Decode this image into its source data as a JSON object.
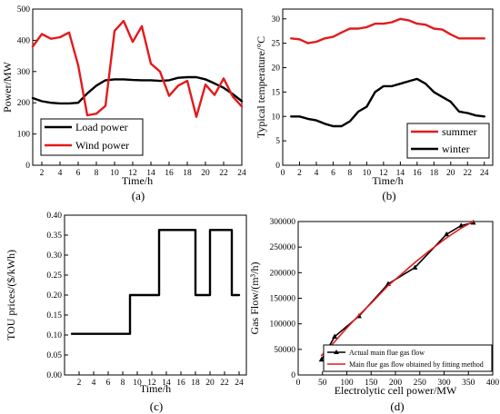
{
  "chart_data": [
    {
      "id": "a",
      "panel_label": "(a)",
      "type": "line",
      "xlabel": "Time/h",
      "ylabel": "Power/MW",
      "xlim": [
        1,
        24
      ],
      "ylim": [
        0,
        500
      ],
      "xticks": [
        2,
        4,
        6,
        8,
        10,
        12,
        14,
        16,
        18,
        20,
        22,
        24
      ],
      "yticks": [
        0,
        100,
        200,
        300,
        400,
        500
      ],
      "legend_position": "bottom-left",
      "x": [
        1,
        2,
        3,
        4,
        5,
        6,
        7,
        8,
        9,
        10,
        11,
        12,
        13,
        14,
        15,
        16,
        17,
        18,
        19,
        20,
        21,
        22,
        23,
        24
      ],
      "series": [
        {
          "name": "Load power",
          "color": "#000000",
          "values": [
            215,
            205,
            200,
            198,
            198,
            200,
            230,
            255,
            272,
            275,
            275,
            273,
            272,
            272,
            270,
            272,
            280,
            282,
            282,
            275,
            262,
            248,
            228,
            205
          ]
        },
        {
          "name": "Wind power",
          "color": "#e31a1c",
          "values": [
            380,
            420,
            405,
            410,
            425,
            320,
            160,
            165,
            190,
            430,
            462,
            395,
            445,
            325,
            300,
            222,
            255,
            270,
            155,
            258,
            225,
            278,
            220,
            188
          ]
        }
      ]
    },
    {
      "id": "b",
      "panel_label": "(b)",
      "type": "line",
      "xlabel": "Time/h",
      "ylabel": "Typical temperature/°C",
      "xlim": [
        0,
        25
      ],
      "ylim": [
        0,
        32
      ],
      "xticks": [
        0,
        2,
        4,
        6,
        8,
        10,
        12,
        14,
        16,
        18,
        20,
        22,
        24
      ],
      "yticks": [
        0,
        5,
        10,
        15,
        20,
        25,
        30
      ],
      "legend_position": "bottom-right",
      "x": [
        1,
        2,
        3,
        4,
        5,
        6,
        7,
        8,
        9,
        10,
        11,
        12,
        13,
        14,
        15,
        16,
        17,
        18,
        19,
        20,
        21,
        22,
        23,
        24
      ],
      "series": [
        {
          "name": "summer",
          "color": "#e31a1c",
          "values": [
            26,
            25.8,
            25,
            25.3,
            26,
            26.3,
            27.2,
            28,
            28,
            28.3,
            29,
            29,
            29.3,
            30,
            29.7,
            29,
            28.8,
            28,
            27.8,
            26.8,
            26,
            26,
            26,
            26
          ]
        },
        {
          "name": "winter",
          "color": "#000000",
          "values": [
            10,
            10,
            9.5,
            9.2,
            8.5,
            8,
            8,
            9,
            11,
            12,
            15,
            16.2,
            16.2,
            16.7,
            17.2,
            17.7,
            16.7,
            15,
            14,
            13,
            11,
            10.7,
            10.2,
            10
          ]
        }
      ]
    },
    {
      "id": "c",
      "panel_label": "(c)",
      "type": "line",
      "step": true,
      "xlabel": "Time/h",
      "ylabel": "TOU prices/($/kWh)",
      "xlim": [
        0,
        25
      ],
      "ylim": [
        0,
        0.4
      ],
      "xticks": [
        2,
        4,
        6,
        8,
        10,
        12,
        14,
        16,
        18,
        20,
        22,
        24
      ],
      "yticks": [
        0.0,
        0.05,
        0.1,
        0.15,
        0.2,
        0.25,
        0.3,
        0.35,
        0.4
      ],
      "ytick_labels": [
        "0.00",
        "0.05",
        "0.10",
        "0.15",
        "0.20",
        "0.25",
        "0.30",
        "0.35",
        "0.40"
      ],
      "x": [
        1,
        2,
        3,
        4,
        5,
        6,
        7,
        8,
        9,
        10,
        11,
        12,
        13,
        14,
        15,
        16,
        17,
        18,
        19,
        20,
        21,
        22,
        23,
        24
      ],
      "series": [
        {
          "color": "#000000",
          "values": [
            0.103,
            0.103,
            0.103,
            0.103,
            0.103,
            0.103,
            0.103,
            0.103,
            0.2,
            0.2,
            0.2,
            0.2,
            0.363,
            0.363,
            0.363,
            0.363,
            0.363,
            0.2,
            0.2,
            0.363,
            0.363,
            0.363,
            0.2,
            0.2
          ]
        }
      ]
    },
    {
      "id": "d",
      "panel_label": "(d)",
      "type": "line",
      "xlabel": "Electrolytic cell power/MW",
      "ylabel": "Gas Flow/(m³/h)",
      "xlim": [
        0,
        400
      ],
      "ylim": [
        0,
        300000
      ],
      "xticks": [
        0,
        50,
        100,
        150,
        200,
        250,
        300,
        350,
        400
      ],
      "yticks": [
        0,
        50000,
        100000,
        150000,
        200000,
        250000,
        300000
      ],
      "legend_position": "bottom-right",
      "series": [
        {
          "name": "Actual main flue gas flow",
          "color": "#000000",
          "marker": "triangle",
          "x": [
            48,
            75,
            125,
            185,
            240,
            305,
            335,
            360
          ],
          "values": [
            30000,
            75000,
            115000,
            178000,
            210000,
            275000,
            292000,
            298000
          ]
        },
        {
          "name": "Main flue gas flow obtained by fitting method",
          "color": "#e31a1c",
          "x": [
            48,
            75,
            100,
            125,
            150,
            185,
            210,
            240,
            270,
            305,
            335,
            360
          ],
          "values": [
            38000,
            65000,
            92000,
            117000,
            140000,
            175000,
            195000,
            220000,
            243000,
            268000,
            287000,
            300000
          ]
        }
      ]
    }
  ]
}
